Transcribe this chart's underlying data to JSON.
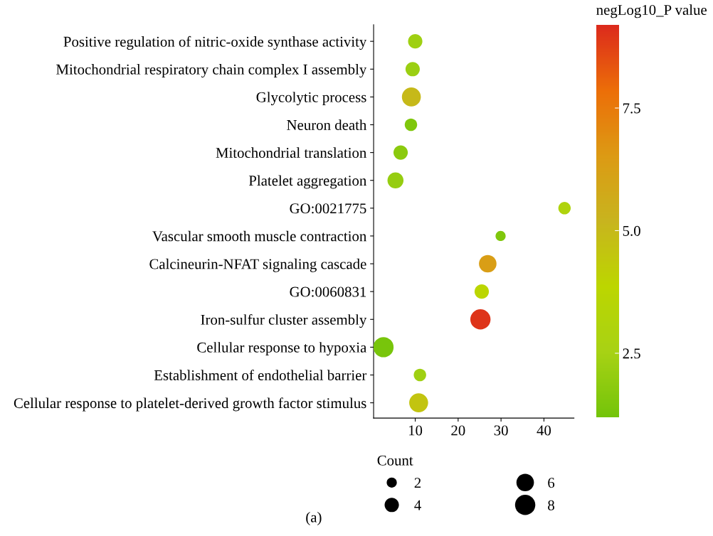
{
  "chart_data": {
    "type": "bubble",
    "categories": [
      "Positive regulation of nitric-oxide synthase activity",
      "Mitochondrial respiratory chain complex I assembly",
      "Glycolytic process",
      "Neuron death",
      "Mitochondrial translation",
      "Platelet aggregation",
      "GO:0021775",
      "Vascular smooth muscle contraction",
      "Calcineurin-NFAT signaling cascade",
      "GO:0060831",
      "Iron-sulfur cluster assembly",
      "Cellular response to hypoxia",
      "Establishment of endothelial barrier",
      "Cellular response to platelet-derived growth factor stimulus"
    ],
    "orientation": "horizontal",
    "values": [
      10.0,
      9.4,
      9.1,
      9.0,
      6.6,
      5.4,
      44.8,
      29.9,
      26.9,
      25.5,
      25.2,
      2.6,
      11.1,
      10.8
    ],
    "sizes": [
      4,
      4,
      7,
      3,
      4,
      5,
      3,
      2,
      6,
      4,
      8,
      8,
      3,
      7
    ],
    "size_legend": [
      2,
      4,
      6,
      8
    ],
    "legend_title": "Count",
    "cvalues": [
      2.3,
      2.2,
      5.0,
      1.5,
      1.8,
      2.1,
      3.0,
      1.5,
      6.3,
      3.8,
      9.0,
      1.3,
      2.3,
      4.6
    ],
    "clabel": "negLog10_P value",
    "clim": [
      1.2,
      9.2
    ],
    "cticks": [
      {
        "value": 2.5,
        "label": "2.5"
      },
      {
        "value": 5,
        "label": "5.0"
      },
      {
        "value": 7.5,
        "label": "7.5"
      }
    ],
    "xlim": [
      0.3,
      47
    ],
    "xticks": [
      10,
      20,
      30,
      40
    ],
    "grid": false,
    "annotations": [
      "(a)"
    ]
  }
}
